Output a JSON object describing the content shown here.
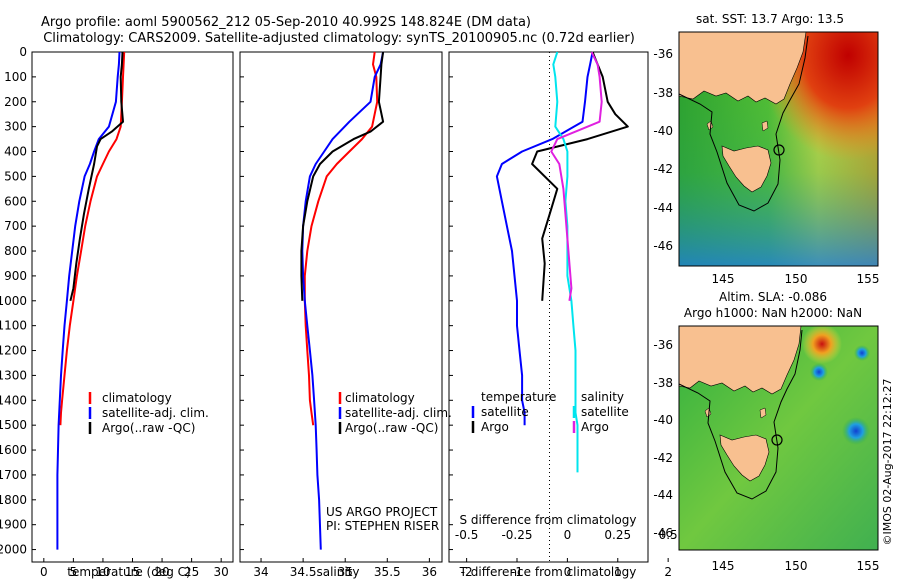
{
  "title": {
    "line1": "Argo profile: aoml 5900562_212 05-Sep-2010 40.992S 148.824E (DM data)",
    "line2": "Climatology: CARS2009. Satellite-adjusted climatology: synTS_20100905.nc (0.72d earlier)"
  },
  "colors": {
    "climatology": "#ff0000",
    "satellite": "#0000ff",
    "argo": "#000000",
    "sal_satellite": "#00e5ee",
    "sal_argo": "#e020e0"
  },
  "chart_data": [
    {
      "type": "line",
      "title": "temperature profile",
      "xlabel": "temperature (deg C)",
      "ylabel": "depth",
      "xlim": [
        -2,
        32
      ],
      "ylim": [
        2050,
        0
      ],
      "xticks": [
        "0",
        "5",
        "10",
        "15",
        "20",
        "25",
        "30"
      ],
      "yticks": [
        "0",
        "100",
        "200",
        "300",
        "400",
        "500",
        "600",
        "700",
        "800",
        "900",
        "1000",
        "1100",
        "1200",
        "1300",
        "1400",
        "1500",
        "1600",
        "1700",
        "1800",
        "1900",
        "2000"
      ],
      "series": [
        {
          "name": "climatology",
          "x": [
            13.6,
            13.5,
            13.4,
            13.2,
            13,
            12.3,
            11,
            10,
            9,
            7.9,
            7,
            6.3,
            5.6,
            5,
            4.4,
            3.9,
            3.5,
            3.1,
            2.9,
            2.8
          ],
          "y": [
            0,
            50,
            100,
            200,
            300,
            350,
            400,
            450,
            500,
            600,
            700,
            800,
            900,
            1000,
            1100,
            1200,
            1300,
            1400,
            1450,
            1500
          ]
        },
        {
          "name": "satellite-adj. clim.",
          "x": [
            12.8,
            12.7,
            12.5,
            12.2,
            11,
            9.3,
            8.5,
            7.8,
            6.9,
            6,
            5.3,
            4.8,
            4.3,
            3.9,
            3.5,
            3.2,
            2.9,
            2.7,
            2.5,
            2.4,
            2.3,
            2.3,
            2.3
          ],
          "y": [
            0,
            50,
            100,
            200,
            300,
            350,
            400,
            450,
            500,
            600,
            700,
            800,
            900,
            1000,
            1100,
            1200,
            1300,
            1400,
            1500,
            1600,
            1700,
            1800,
            2000
          ]
        },
        {
          "name": "Argo(..raw -QC)",
          "x": [
            13.3,
            13.2,
            13,
            13.1,
            13.4,
            11.5,
            9.6,
            9,
            8.5,
            7.6,
            6.8,
            6.1,
            5.5,
            5,
            4.5
          ],
          "y": [
            0,
            50,
            100,
            200,
            280,
            320,
            350,
            380,
            450,
            550,
            650,
            750,
            850,
            950,
            1000
          ]
        }
      ],
      "legend": [
        "climatology",
        "satellite-adj. clim.",
        "Argo(..raw -QC)"
      ]
    },
    {
      "type": "line",
      "title": "salinity profile",
      "xlabel": "salinity",
      "xlim": [
        33.75,
        36.15
      ],
      "ylim": [
        2050,
        0
      ],
      "xticks": [
        "34",
        "34.5",
        "35",
        "35.5",
        "36"
      ],
      "series": [
        {
          "name": "climatology",
          "x": [
            35.35,
            35.33,
            35.37,
            35.38,
            35.32,
            35.2,
            35.05,
            34.9,
            34.78,
            34.68,
            34.6,
            34.55,
            34.52,
            34.52,
            34.53,
            34.55,
            34.57,
            34.58,
            34.6,
            34.62
          ],
          "y": [
            0,
            50,
            100,
            200,
            300,
            350,
            400,
            450,
            500,
            600,
            700,
            800,
            900,
            1000,
            1100,
            1200,
            1300,
            1400,
            1450,
            1500
          ]
        },
        {
          "name": "satellite-adj. clim.",
          "x": [
            35.45,
            35.42,
            35.35,
            35.3,
            35.05,
            34.85,
            34.75,
            34.65,
            34.58,
            34.53,
            34.5,
            34.49,
            34.5,
            34.52,
            34.55,
            34.58,
            34.61,
            34.63,
            34.65,
            34.66,
            34.67,
            34.69,
            34.71
          ],
          "y": [
            0,
            50,
            100,
            200,
            280,
            350,
            400,
            450,
            500,
            600,
            700,
            800,
            900,
            1000,
            1100,
            1200,
            1300,
            1400,
            1500,
            1600,
            1700,
            1800,
            2000
          ]
        },
        {
          "name": "Argo(..raw -QC)",
          "x": [
            35.45,
            35.43,
            35.42,
            35.4,
            35.45,
            35.3,
            35.1,
            34.85,
            34.7,
            34.62,
            34.55,
            34.5,
            34.48,
            34.48,
            34.49
          ],
          "y": [
            0,
            50,
            100,
            200,
            280,
            320,
            350,
            400,
            450,
            500,
            600,
            700,
            800,
            900,
            1000
          ]
        }
      ],
      "legend": [
        "climatology",
        "satellite-adj. clim.",
        "Argo(..raw -QC)"
      ],
      "annotation": [
        "US ARGO PROJECT",
        "PI: STEPHEN RISER"
      ]
    },
    {
      "type": "line",
      "title": "difference from climatology",
      "xlabel": "T difference from climatology",
      "xlabel_top": "S difference from climatology",
      "xlim": [
        -2.35,
        1.6
      ],
      "ylim": [
        2050,
        0
      ],
      "xticks": [
        "-2",
        "-1",
        "0",
        "1",
        "2"
      ],
      "xticks_top": [
        "-0.5",
        "-0.25",
        "0",
        "0.25",
        "0.5"
      ],
      "series": [
        {
          "name": "temperature satellite",
          "axis": "T",
          "x": [
            0.5,
            0.45,
            0.4,
            0.35,
            0.3,
            -0.3,
            -0.9,
            -1.3,
            -1.4,
            -1.3,
            -1.2,
            -1.1,
            -1.05,
            -1,
            -1,
            -0.95,
            -0.9,
            -0.9,
            -0.85,
            -0.85
          ],
          "y": [
            0,
            50,
            100,
            200,
            280,
            350,
            400,
            450,
            500,
            600,
            700,
            800,
            900,
            1000,
            1100,
            1200,
            1300,
            1400,
            1450,
            1500
          ]
        },
        {
          "name": "temperature Argo",
          "axis": "T",
          "x": [
            0.5,
            0.6,
            0.7,
            0.8,
            0.95,
            1.2,
            0.4,
            -0.6,
            -0.7,
            -0.2,
            -0.35,
            -0.5,
            -0.45,
            -0.5
          ],
          "y": [
            0,
            50,
            100,
            200,
            250,
            300,
            350,
            400,
            450,
            550,
            650,
            750,
            850,
            1000
          ]
        },
        {
          "name": "salinity satellite",
          "axis": "S",
          "x": [
            -0.05,
            -0.07,
            -0.06,
            -0.05,
            -0.06,
            -0.02,
            0,
            0,
            0,
            -0.01,
            0,
            0,
            0,
            0.02,
            0.03,
            0.04,
            0.04,
            0.04,
            0.04,
            0.05,
            0.05,
            0.05
          ],
          "y": [
            0,
            50,
            100,
            200,
            300,
            350,
            400,
            450,
            500,
            600,
            700,
            800,
            900,
            1000,
            1100,
            1200,
            1300,
            1400,
            1450,
            1500,
            1600,
            1690
          ]
        },
        {
          "name": "salinity Argo",
          "axis": "S",
          "x": [
            0.12,
            0.15,
            0.16,
            0.17,
            0.16,
            -0.05,
            -0.08,
            -0.04,
            -0.02,
            -0.01,
            0,
            0.01,
            0.02,
            0.01
          ],
          "y": [
            0,
            50,
            100,
            200,
            280,
            350,
            400,
            450,
            550,
            650,
            750,
            850,
            950,
            1000
          ]
        }
      ],
      "legend_titles": [
        "temperature",
        "salinity"
      ],
      "legend": [
        "satellite",
        "Argo",
        "satellite",
        "Argo"
      ]
    },
    {
      "type": "heatmap",
      "title": "sat. SST: 13.7  Argo: 13.5",
      "xticks": [
        "145",
        "150",
        "155"
      ],
      "yticks": [
        "-36",
        "-38",
        "-40",
        "-42",
        "-44",
        "-46"
      ],
      "xlim": [
        142.5,
        155.5
      ],
      "ylim": [
        -47,
        -35.3
      ],
      "float_position": [
        148.824,
        -40.992
      ]
    },
    {
      "type": "heatmap",
      "title": [
        "Altim. SLA: -0.086",
        "Argo h1000: NaN h2000: NaN"
      ],
      "xticks": [
        "145",
        "150",
        "155"
      ],
      "yticks": [
        "-36",
        "-38",
        "-40",
        "-42",
        "-44",
        "-46"
      ],
      "xlim": [
        142.5,
        155.5
      ],
      "ylim": [
        -47,
        -35.3
      ],
      "float_position": [
        148.824,
        -40.992
      ]
    }
  ],
  "credit": "©IMOS 02-Aug-2017 22:12:27"
}
